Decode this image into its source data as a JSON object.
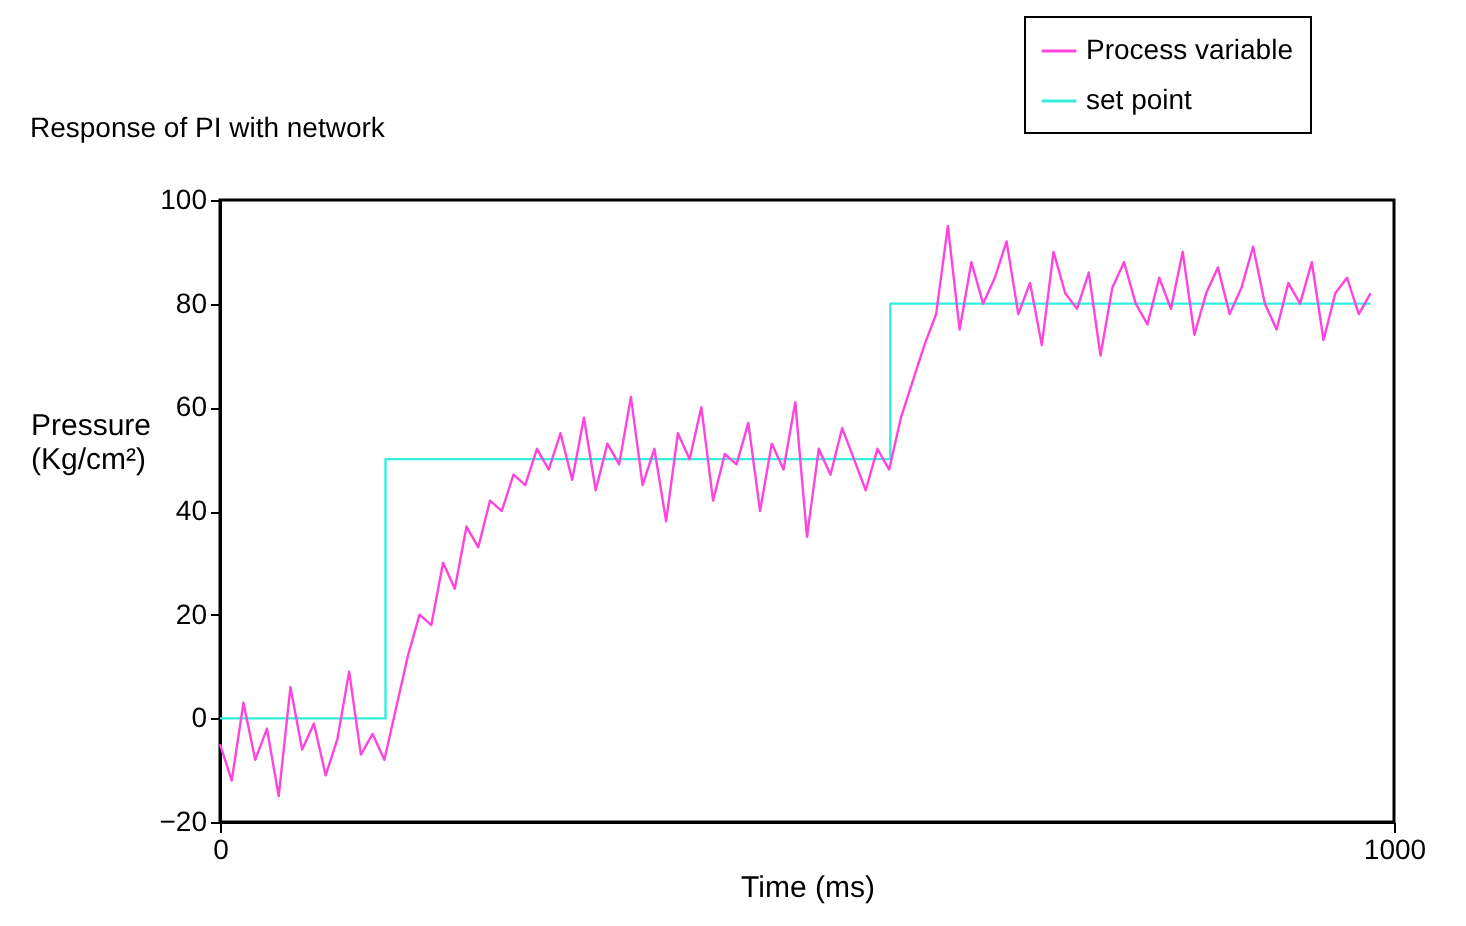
{
  "chart_data": {
    "type": "line",
    "title": "Response of PI with network",
    "xlabel": "Time (ms)",
    "ylabel": "Pressure (Kg/cm²)",
    "xlim": [
      0,
      1000
    ],
    "xticks": [
      0,
      {
        "value": 1000,
        "label": "1000"
      }
    ],
    "ylim": [
      -20,
      100
    ],
    "yticks": [
      -20,
      0,
      20,
      40,
      60,
      80,
      100
    ],
    "grid": false,
    "legend": "top right",
    "line_style": "solid",
    "marker": "none",
    "series": [
      {
        "name": "Process variable",
        "color": "#ff44dd",
        "type": "line",
        "x": [
          0,
          10,
          20,
          30,
          40,
          50,
          60,
          70,
          80,
          90,
          100,
          110,
          120,
          130,
          140,
          150,
          160,
          170,
          180,
          190,
          200,
          210,
          220,
          230,
          240,
          250,
          260,
          270,
          280,
          290,
          300,
          310,
          320,
          330,
          340,
          350,
          360,
          370,
          380,
          390,
          400,
          410,
          420,
          430,
          440,
          450,
          460,
          470,
          480,
          490,
          500,
          510,
          520,
          530,
          540,
          550,
          560,
          570,
          580,
          590,
          600,
          610,
          620,
          630,
          640,
          650,
          660,
          670,
          680,
          690,
          700,
          710,
          720,
          730,
          740,
          750,
          760,
          770,
          780,
          790,
          800,
          810,
          820,
          830,
          840,
          850,
          860,
          870,
          880,
          890,
          900,
          910,
          920,
          930,
          940,
          950,
          960,
          970,
          980
        ],
        "values": [
          -5,
          -12,
          3,
          -8,
          -2,
          -15,
          6,
          -6,
          -1,
          -11,
          -4,
          9,
          -7,
          -3,
          -8,
          2,
          12,
          20,
          18,
          30,
          25,
          37,
          33,
          42,
          40,
          47,
          45,
          52,
          48,
          55,
          46,
          58,
          44,
          53,
          49,
          62,
          45,
          52,
          38,
          55,
          50,
          60,
          42,
          51,
          49,
          57,
          40,
          53,
          48,
          61,
          35,
          52,
          47,
          56,
          50,
          44,
          52,
          48,
          58,
          65,
          72,
          78,
          95,
          75,
          88,
          80,
          85,
          92,
          78,
          84,
          72,
          90,
          82,
          79,
          86,
          70,
          83,
          88,
          80,
          76,
          85,
          79,
          90,
          74,
          82,
          87,
          78,
          83,
          91,
          80,
          75,
          84,
          80,
          88,
          73,
          82,
          85,
          78,
          82
        ]
      },
      {
        "name": "set point",
        "color": "#33eedd",
        "type": "step",
        "x": [
          0,
          141,
          571,
          980
        ],
        "values": [
          0,
          50,
          80,
          80
        ]
      }
    ]
  }
}
